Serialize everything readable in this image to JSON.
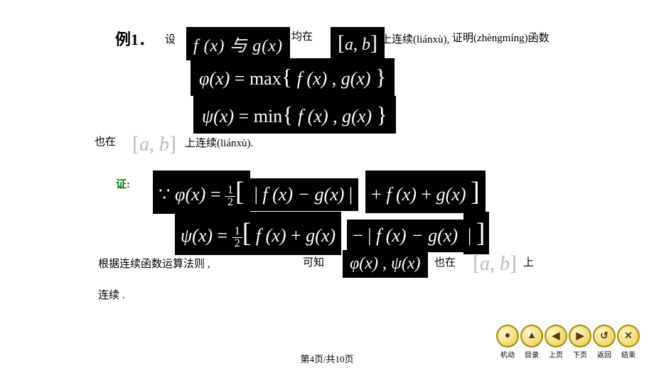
{
  "example_label": "例1．",
  "line1": {
    "she": "设",
    "math_fg": "f (x) 与 g(x)",
    "junzai": "均在",
    "interval": "[a, b]",
    "lianxu": "上连续(liánxù),",
    "zhengming": "证明(zhèngmíng)函数"
  },
  "phi_def_prefix": "φ(x) = max",
  "phi_def_inner": "f (x) , g(x)",
  "psi_def_prefix": "ψ(x) = min",
  "psi_def_inner": "f (x) , g(x)",
  "line4": {
    "yezai": "也在",
    "interval": "[a, b]",
    "lianxu": "上连续(liánxù)."
  },
  "proof_label": "证:",
  "phi_proof": {
    "pre": "∵ φ(x) =",
    "half_n": "1",
    "half_d": "2",
    "seg1": "| f (x) − g(x)",
    "seg2": "|",
    "seg3": "+ f (x) + g(x)"
  },
  "psi_proof": {
    "pre": "ψ(x) =",
    "half_n": "1",
    "half_d": "2",
    "seg1": "f (x) + g(x)",
    "seg2": "− | f (x) − g(x)",
    "seg3": "|"
  },
  "line7": {
    "rule": "根据连续函数运算法则 ,",
    "kezhi": "可知",
    "phipsi": "φ(x) , ψ(x)",
    "yezai": "也在",
    "interval": "[a, b]",
    "shang": "上"
  },
  "line8": "连续 .",
  "pager": "第4页/共10页",
  "nav": [
    {
      "name": "nav-motor",
      "icon": "●",
      "label": "机动"
    },
    {
      "name": "nav-toc",
      "icon": "▲",
      "label": "目录"
    },
    {
      "name": "nav-prev",
      "icon": "◀",
      "label": "上页"
    },
    {
      "name": "nav-next",
      "icon": "▶",
      "label": "下页"
    },
    {
      "name": "nav-back",
      "icon": "↺",
      "label": "返回"
    },
    {
      "name": "nav-end",
      "icon": "✕",
      "label": "结束"
    }
  ],
  "colors": {
    "bg": "#ffffff",
    "mathbox": "#000000",
    "gray": "#bbbbbb",
    "proof": "#0a7a0a",
    "navborder": "#a88a00"
  }
}
